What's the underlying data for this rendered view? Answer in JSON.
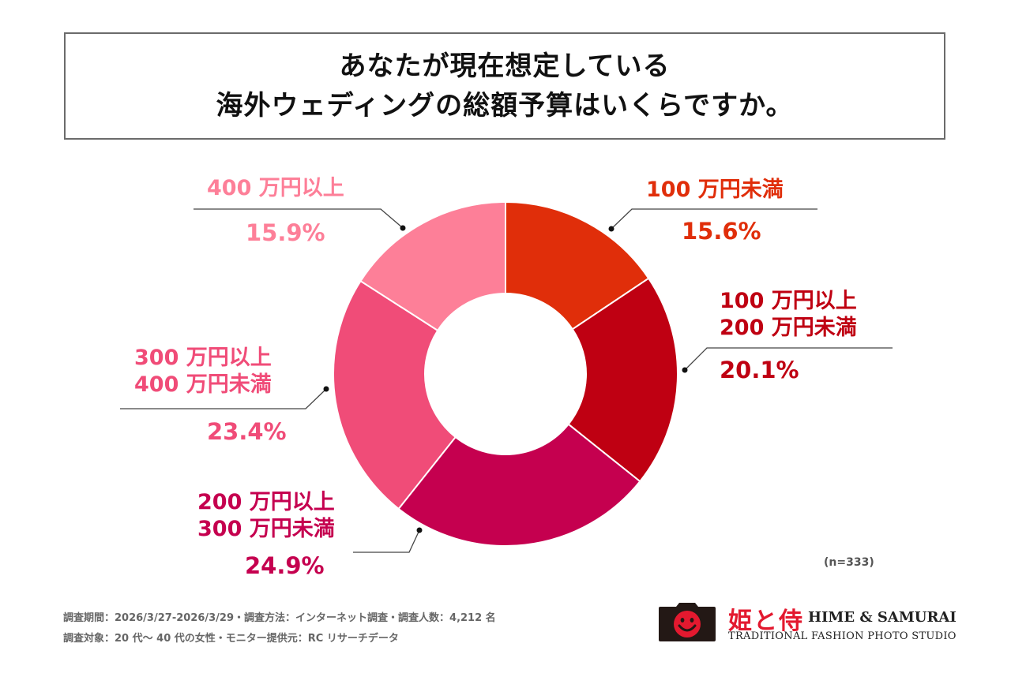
{
  "title": {
    "line1": "あなたが現在想定している",
    "line2": "海外ウェディングの総額予算はいくらですか。"
  },
  "chart_data": {
    "type": "pie",
    "subtype": "donut",
    "title": "あなたが現在想定している海外ウェディングの総額予算はいくらですか。",
    "categories": [
      "100万円未満",
      "100万円以上200万円未満",
      "200万円以上300万円未満",
      "300万円以上400万円未満",
      "400万円以上"
    ],
    "values": [
      15.6,
      20.1,
      24.9,
      23.4,
      15.9
    ],
    "unit": "%",
    "sample_size": "(n=333)",
    "slices": [
      {
        "label_lines": [
          "100 万円未満"
        ],
        "value": 15.6,
        "value_label": "15.6%",
        "color": "#e02e0a"
      },
      {
        "label_lines": [
          "100 万円以上",
          "200 万円未満"
        ],
        "value": 20.1,
        "value_label": "20.1%",
        "color": "#bf0012"
      },
      {
        "label_lines": [
          "200 万円以上",
          "300 万円未満"
        ],
        "value": 24.9,
        "value_label": "24.9%",
        "color": "#c5004f"
      },
      {
        "label_lines": [
          "300 万円以上",
          "400 万円未満"
        ],
        "value": 23.4,
        "value_label": "23.4%",
        "color": "#f04c78"
      },
      {
        "label_lines": [
          "400 万円以上"
        ],
        "value": 15.9,
        "value_label": "15.9%",
        "color": "#fd7f98"
      }
    ],
    "start": "top",
    "direction": "clockwise"
  },
  "footer": {
    "line1": "調査期間：2026/3/27-2026/3/29・調査方法：インターネット調査・調査人数：4,212 名",
    "line2": "調査対象：20 代〜 40 代の女性・モニター提供元：RC リサーチデータ"
  },
  "logo": {
    "icon": "camera-smiley-icon",
    "name_jp": "姫と侍",
    "name_en": "HIME & SAMURAI",
    "tagline": "TRADITIONAL FASHION PHOTO STUDIO",
    "brand_color": "#e3192f"
  }
}
